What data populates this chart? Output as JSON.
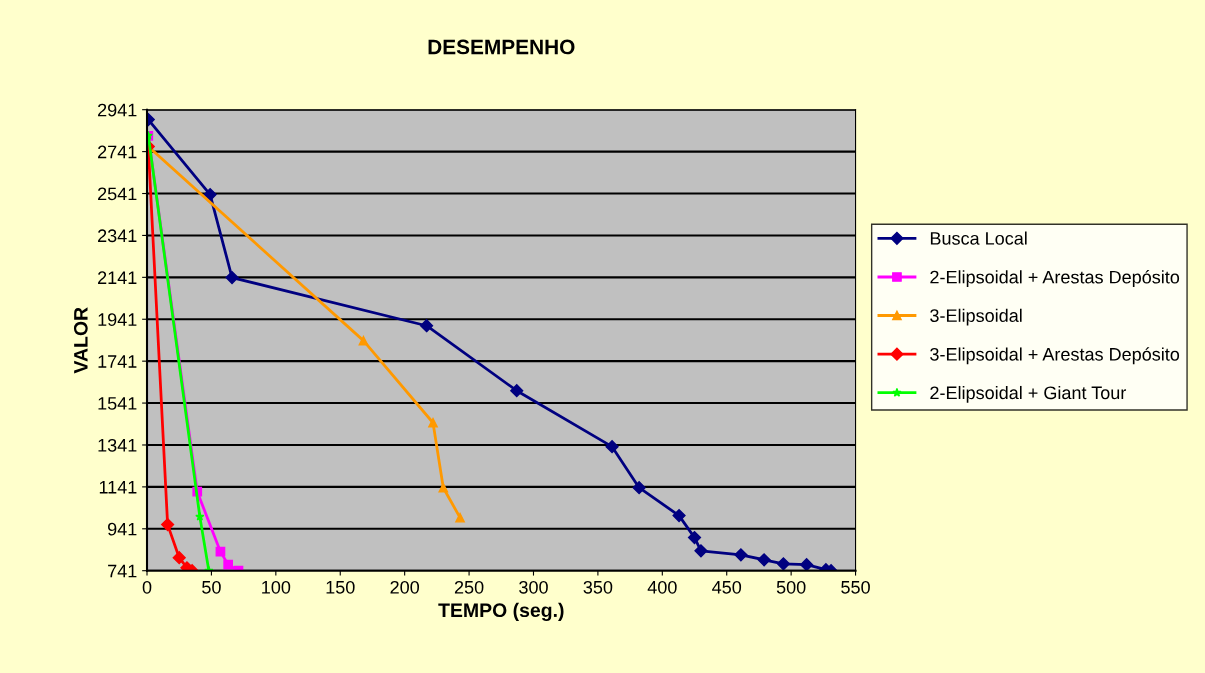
{
  "chart_data": {
    "type": "line",
    "title": "DESEMPENHO",
    "xlabel": "TEMPO (seg.)",
    "ylabel": "VALOR",
    "xlim": [
      0,
      550
    ],
    "xticks": [
      0,
      50,
      100,
      150,
      200,
      250,
      300,
      350,
      400,
      450,
      500,
      550
    ],
    "ylim": [
      741,
      2941
    ],
    "yticks": [
      741,
      941,
      1141,
      1341,
      1541,
      1741,
      1941,
      2141,
      2341,
      2541,
      2741,
      2941
    ],
    "grid": "y",
    "legend": "right",
    "series": [
      {
        "name": "Busca Local",
        "color": "#000080",
        "marker": "diamond",
        "x": [
          1,
          49,
          66,
          217,
          287,
          361,
          382,
          413,
          425,
          430,
          461,
          479,
          494,
          512,
          527,
          531
        ],
        "values": [
          2894,
          2536,
          2140,
          1910,
          1600,
          1333,
          1137,
          1004,
          899,
          836,
          817,
          793,
          774,
          770,
          746,
          741
        ]
      },
      {
        "name": "2-Elipsoidal + Arestas Depósito",
        "color": "#ff00ff",
        "marker": "square",
        "x": [
          1,
          39,
          57,
          63,
          71
        ],
        "values": [
          2816,
          1118,
          832,
          770,
          741
        ]
      },
      {
        "name": "3-Elipsoidal",
        "color": "#ff9900",
        "marker": "triangle",
        "x": [
          1,
          168,
          222,
          230,
          243
        ],
        "values": [
          2765,
          1839,
          1447,
          1137,
          994
        ]
      },
      {
        "name": "3-Elipsoidal + Arestas Depósito",
        "color": "#ff0000",
        "marker": "diamond",
        "x": [
          1,
          16,
          25,
          31,
          35
        ],
        "values": [
          2765,
          961,
          803,
          755,
          741
        ]
      },
      {
        "name": "2-Elipsoidal + Giant Tour",
        "color": "#00ff00",
        "marker": "star",
        "x": [
          1,
          41,
          48
        ],
        "values": [
          2817,
          999,
          741
        ]
      }
    ]
  }
}
